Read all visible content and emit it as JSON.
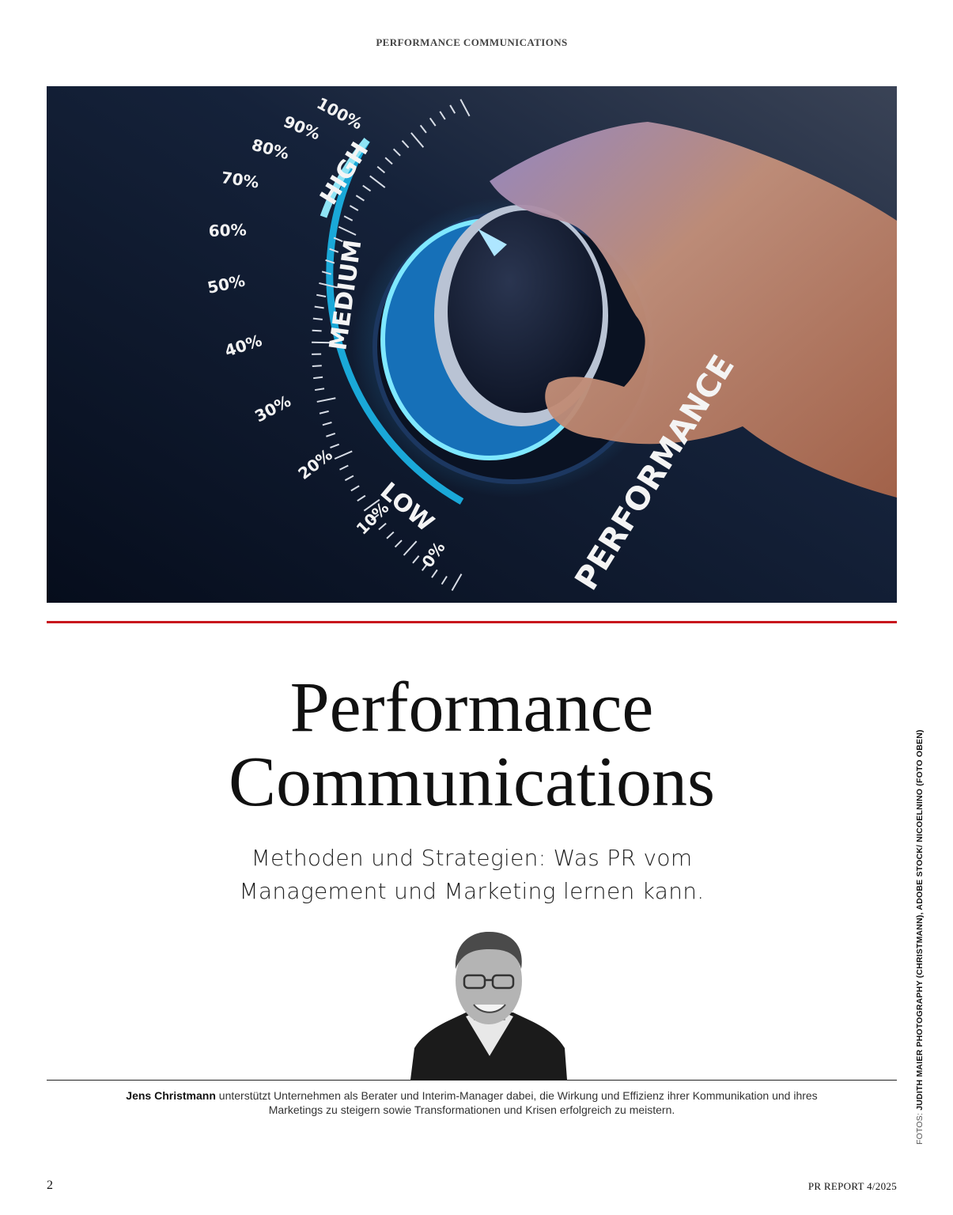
{
  "header": {
    "running_head": "PERFORMANCE COMMUNICATIONS"
  },
  "hero_image": {
    "scale_labels": [
      "0%",
      "10%",
      "20%",
      "30%",
      "40%",
      "50%",
      "60%",
      "70%",
      "80%",
      "90%",
      "100%"
    ],
    "zone_labels": [
      "LOW",
      "MEDIUM",
      "HIGH"
    ],
    "dial_caption": "PERFORMANCE",
    "colors": {
      "background": "#0f1a2e",
      "arc": "#1aa8d8",
      "skin": "#c98a6e"
    }
  },
  "article": {
    "title_line1": "Performance",
    "title_line2": "Communications",
    "subtitle_line1": "Methoden und Strategien: Was PR vom",
    "subtitle_line2": "Management und Marketing lernen kann.",
    "author_name": "Jens Christmann",
    "author_bio": " unterstützt Unternehmen als Berater und Interim-Manager dabei, die Wirkung und Effizienz ihrer Kommunikation und ihres Marketings zu steigern sowie Transformationen und Krisen erfolgreich zu meistern."
  },
  "credit": {
    "prefix": "FOTOS: ",
    "text": "JUDITH MAIER PHOTOGRAPHY (CHRISTMANN), ADOBE STOCK/ NICOELNINO (FOTO OBEN)"
  },
  "footer": {
    "page_number": "2",
    "issue": "PR REPORT 4/2025"
  },
  "colors": {
    "accent_rule": "#c8161d"
  }
}
